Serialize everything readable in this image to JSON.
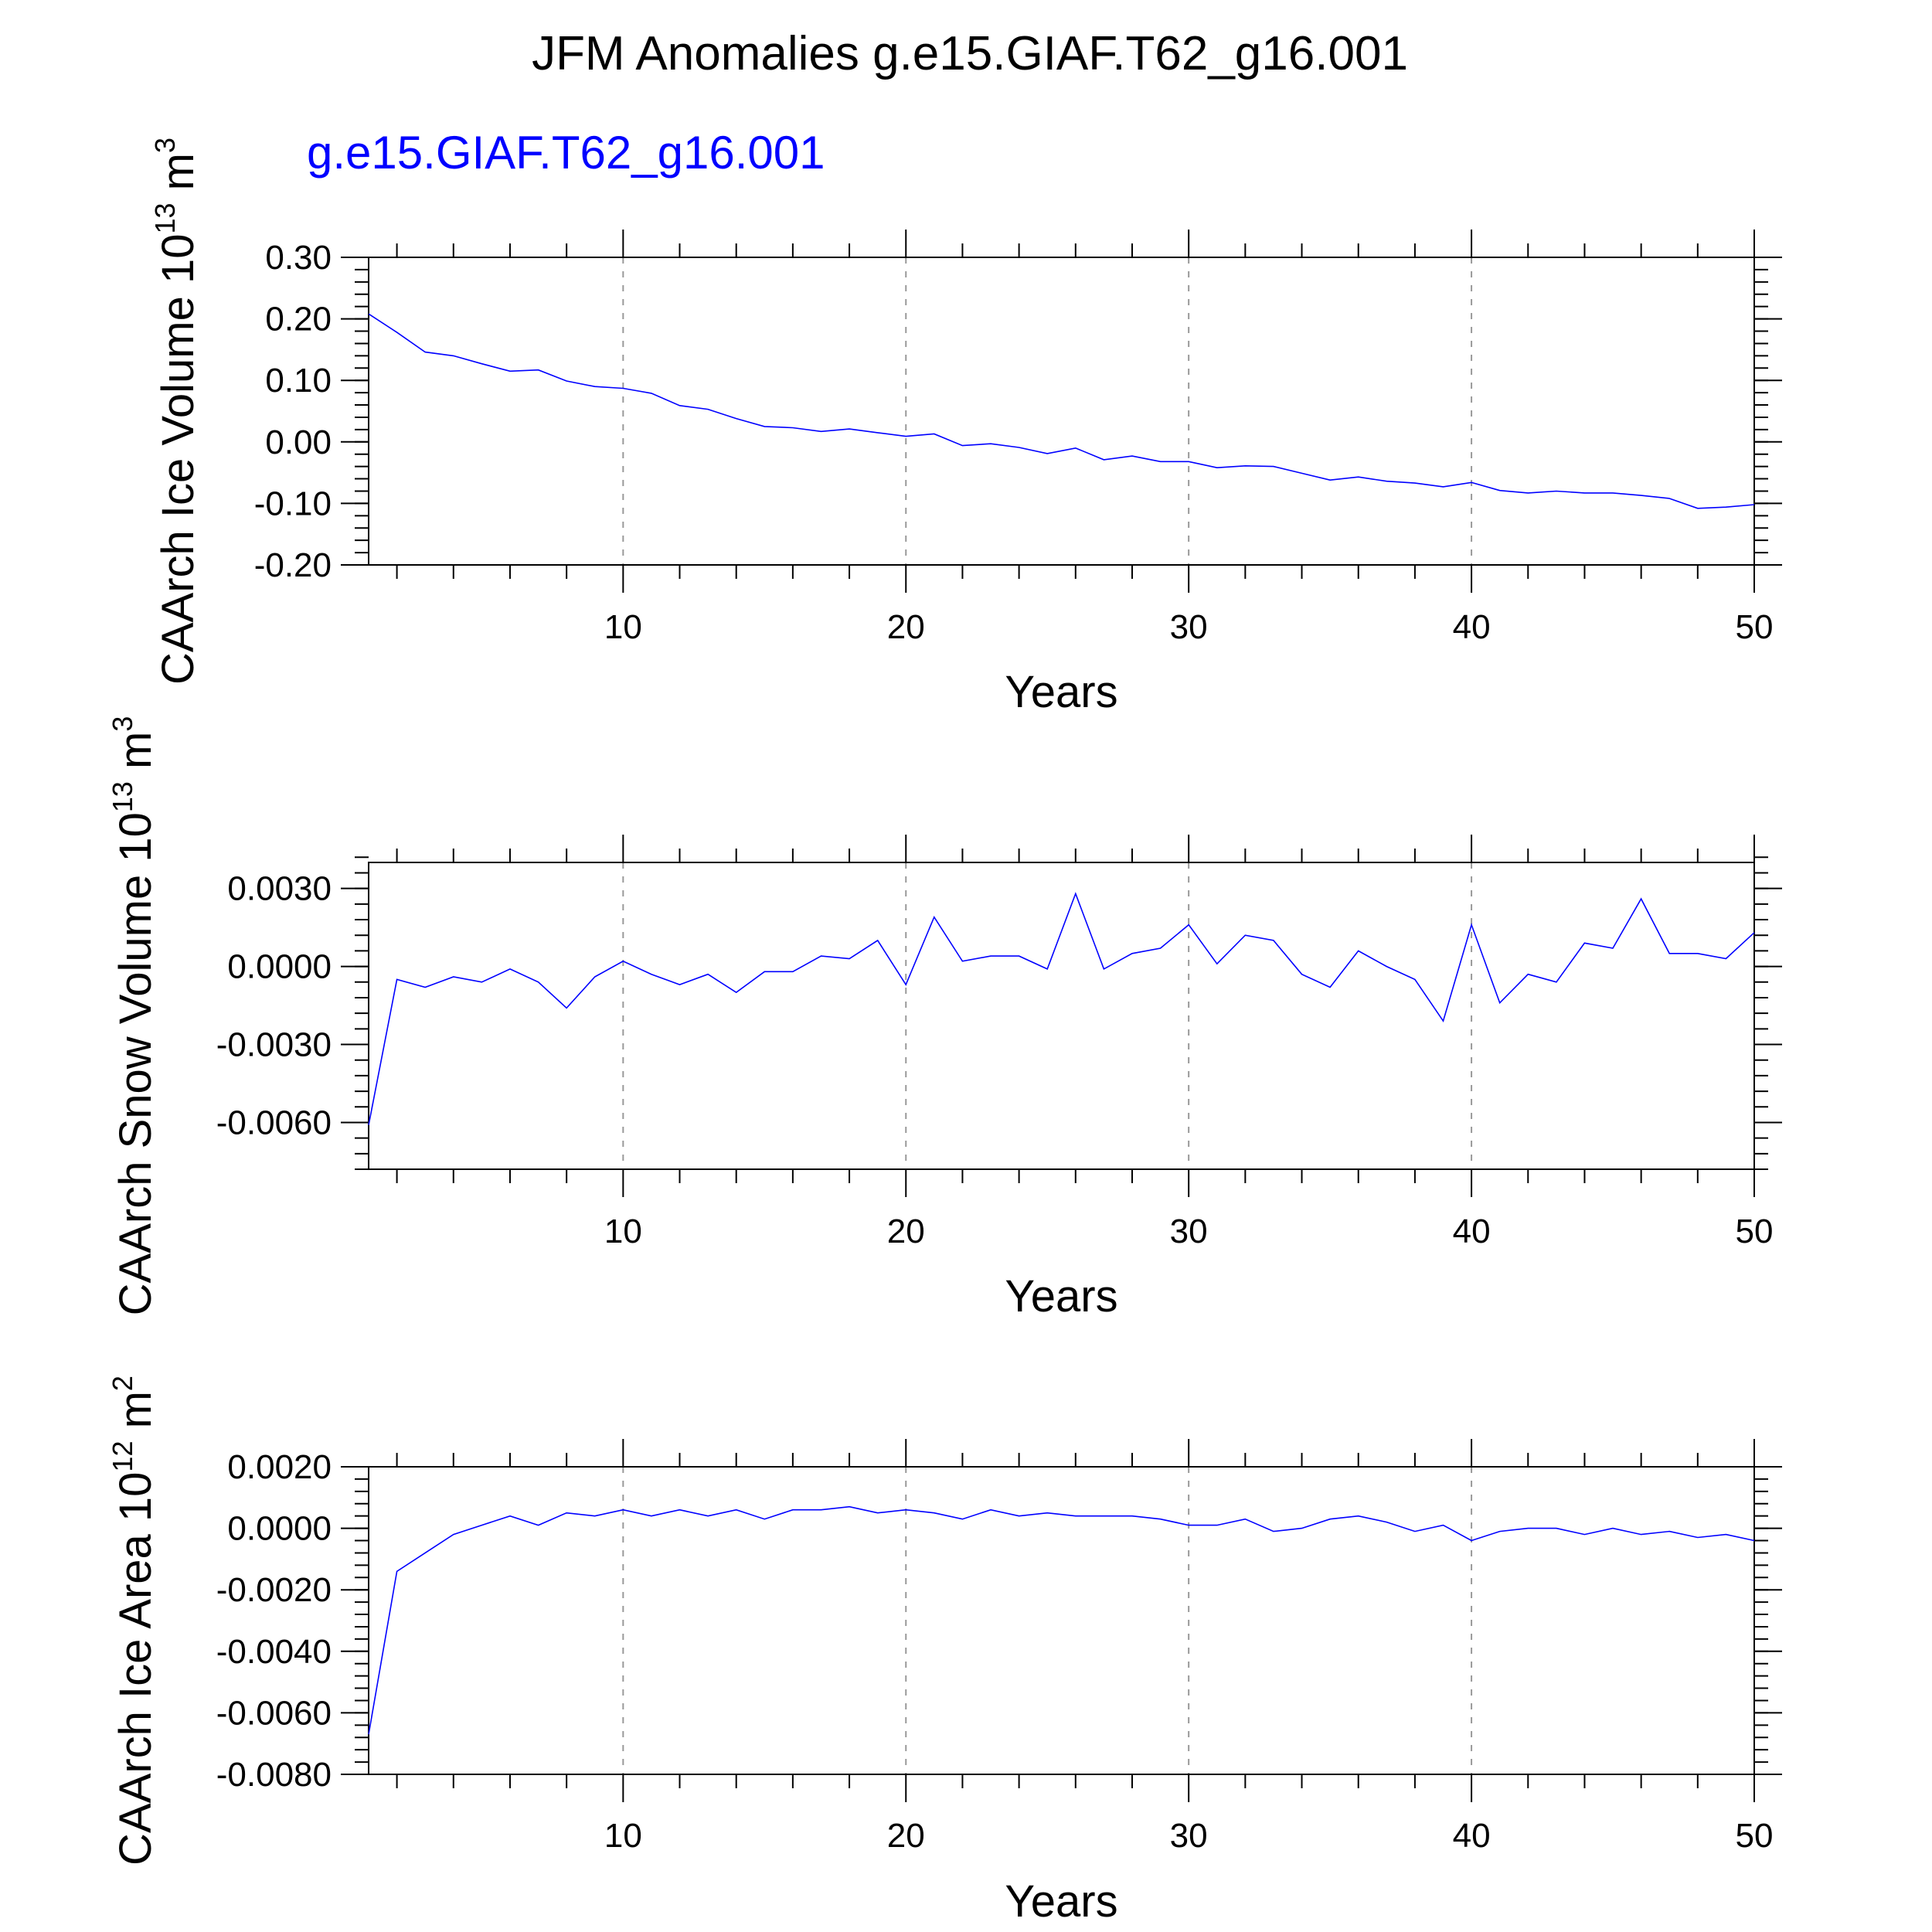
{
  "title": "JFM Anomalies g.e15.GIAF.T62_g16.001",
  "legend_label": "g.e15.GIAF.T62_g16.001",
  "line_color": "#0000ff",
  "chart_data": [
    {
      "type": "line",
      "ylabel_main": "CAArch Ice Volume 10",
      "ylabel_exp": "13",
      "ylabel_unit": " m",
      "ylabel_unit_exp": "3",
      "xlabel": "Years",
      "xlim": [
        1,
        50
      ],
      "ylim": [
        -0.2,
        0.3
      ],
      "yticks": [
        0.3,
        0.2,
        0.1,
        0.0,
        -0.1,
        -0.2
      ],
      "ytick_labels": [
        "0.30",
        "0.20",
        "0.10",
        "0.00",
        "-0.10",
        "-0.20"
      ],
      "yminor_step": 0.02,
      "xticks": [
        10,
        20,
        30,
        40,
        50
      ],
      "xtick_labels": [
        "10",
        "20",
        "30",
        "40",
        "50"
      ],
      "x": [
        1,
        2,
        3,
        4,
        5,
        6,
        7,
        8,
        9,
        10,
        11,
        12,
        13,
        14,
        15,
        16,
        17,
        18,
        19,
        20,
        21,
        22,
        23,
        24,
        25,
        26,
        27,
        28,
        29,
        30,
        31,
        32,
        33,
        34,
        35,
        36,
        37,
        38,
        39,
        40,
        41,
        42,
        43,
        44,
        45,
        46,
        47,
        48,
        49,
        50
      ],
      "series": [
        {
          "name": "g.e15.GIAF.T62_g16.001",
          "values": [
            0.208,
            0.178,
            0.146,
            0.14,
            0.127,
            0.115,
            0.117,
            0.099,
            0.09,
            0.087,
            0.079,
            0.059,
            0.053,
            0.038,
            0.025,
            0.023,
            0.017,
            0.021,
            0.015,
            0.009,
            0.013,
            -0.006,
            -0.003,
            -0.009,
            -0.019,
            -0.01,
            -0.029,
            -0.023,
            -0.032,
            -0.032,
            -0.042,
            -0.039,
            -0.04,
            -0.051,
            -0.062,
            -0.057,
            -0.064,
            -0.067,
            -0.073,
            -0.066,
            -0.079,
            -0.083,
            -0.08,
            -0.083,
            -0.083,
            -0.087,
            -0.092,
            -0.108,
            -0.106,
            -0.102
          ]
        }
      ]
    },
    {
      "type": "line",
      "ylabel_main": "CAArch Snow Volume 10",
      "ylabel_exp": "13",
      "ylabel_unit": " m",
      "ylabel_unit_exp": "3",
      "xlabel": "Years",
      "xlim": [
        1,
        50
      ],
      "ylim": [
        -0.0078,
        0.004
      ],
      "yticks": [
        0.003,
        0.0,
        -0.003,
        -0.006
      ],
      "ytick_labels": [
        "0.0030",
        "0.0000",
        "-0.0030",
        "-0.0060"
      ],
      "yminor_step": 0.0006,
      "xticks": [
        10,
        20,
        30,
        40,
        50
      ],
      "xtick_labels": [
        "10",
        "20",
        "30",
        "40",
        "50"
      ],
      "x": [
        1,
        2,
        3,
        4,
        5,
        6,
        7,
        8,
        9,
        10,
        11,
        12,
        13,
        14,
        15,
        16,
        17,
        18,
        19,
        20,
        21,
        22,
        23,
        24,
        25,
        26,
        27,
        28,
        29,
        30,
        31,
        32,
        33,
        34,
        35,
        36,
        37,
        38,
        39,
        40,
        41,
        42,
        43,
        44,
        45,
        46,
        47,
        48,
        49,
        50
      ],
      "series": [
        {
          "name": "g.e15.GIAF.T62_g16.001",
          "values": [
            -0.0061,
            -0.0005,
            -0.0008,
            -0.0004,
            -0.0006,
            -0.0001,
            -0.0006,
            -0.0016,
            -0.0004,
            0.0002,
            -0.0003,
            -0.0007,
            -0.0003,
            -0.001,
            -0.0002,
            -0.0002,
            0.0004,
            0.0003,
            0.001,
            -0.0007,
            0.0019,
            0.0002,
            0.0004,
            0.0004,
            -0.0001,
            0.0028,
            -0.0001,
            0.0005,
            0.0007,
            0.0016,
            0.0001,
            0.0012,
            0.001,
            -0.0003,
            -0.0008,
            0.0006,
            0.0,
            -0.0005,
            -0.0021,
            0.0016,
            -0.0014,
            -0.0003,
            -0.0006,
            0.0009,
            0.0007,
            0.0026,
            0.0005,
            0.0005,
            0.0003,
            0.0013
          ]
        }
      ]
    },
    {
      "type": "line",
      "ylabel_main": "CAArch Ice Area 10",
      "ylabel_exp": "12",
      "ylabel_unit": " m",
      "ylabel_unit_exp": "2",
      "xlabel": "Years",
      "xlim": [
        1,
        50
      ],
      "ylim": [
        -0.008,
        0.002
      ],
      "yticks": [
        0.002,
        0.0,
        -0.002,
        -0.004,
        -0.006,
        -0.008
      ],
      "ytick_labels": [
        "0.0020",
        "0.0000",
        "-0.0020",
        "-0.0040",
        "-0.0060",
        "-0.0080"
      ],
      "yminor_step": 0.0004,
      "xticks": [
        10,
        20,
        30,
        40,
        50
      ],
      "xtick_labels": [
        "10",
        "20",
        "30",
        "40",
        "50"
      ],
      "x": [
        1,
        2,
        3,
        4,
        5,
        6,
        7,
        8,
        9,
        10,
        11,
        12,
        13,
        14,
        15,
        16,
        17,
        18,
        19,
        20,
        21,
        22,
        23,
        24,
        25,
        26,
        27,
        28,
        29,
        30,
        31,
        32,
        33,
        34,
        35,
        36,
        37,
        38,
        39,
        40,
        41,
        42,
        43,
        44,
        45,
        46,
        47,
        48,
        49,
        50
      ],
      "series": [
        {
          "name": "g.e15.GIAF.T62_g16.001",
          "values": [
            -0.0067,
            -0.0014,
            -0.0008,
            -0.0002,
            0.0001,
            0.0004,
            0.0001,
            0.0005,
            0.0004,
            0.0006,
            0.0004,
            0.0006,
            0.0004,
            0.0006,
            0.0003,
            0.0006,
            0.0006,
            0.0007,
            0.0005,
            0.0006,
            0.0005,
            0.0003,
            0.0006,
            0.0004,
            0.0005,
            0.0004,
            0.0004,
            0.0004,
            0.0003,
            0.0001,
            0.0001,
            0.0003,
            -0.0001,
            0.0,
            0.0003,
            0.0004,
            0.0002,
            -0.0001,
            0.0001,
            -0.0004,
            -0.0001,
            0.0,
            0.0,
            -0.0002,
            0.0,
            -0.0002,
            -0.0001,
            -0.0003,
            -0.0002,
            -0.0004
          ]
        }
      ]
    }
  ]
}
